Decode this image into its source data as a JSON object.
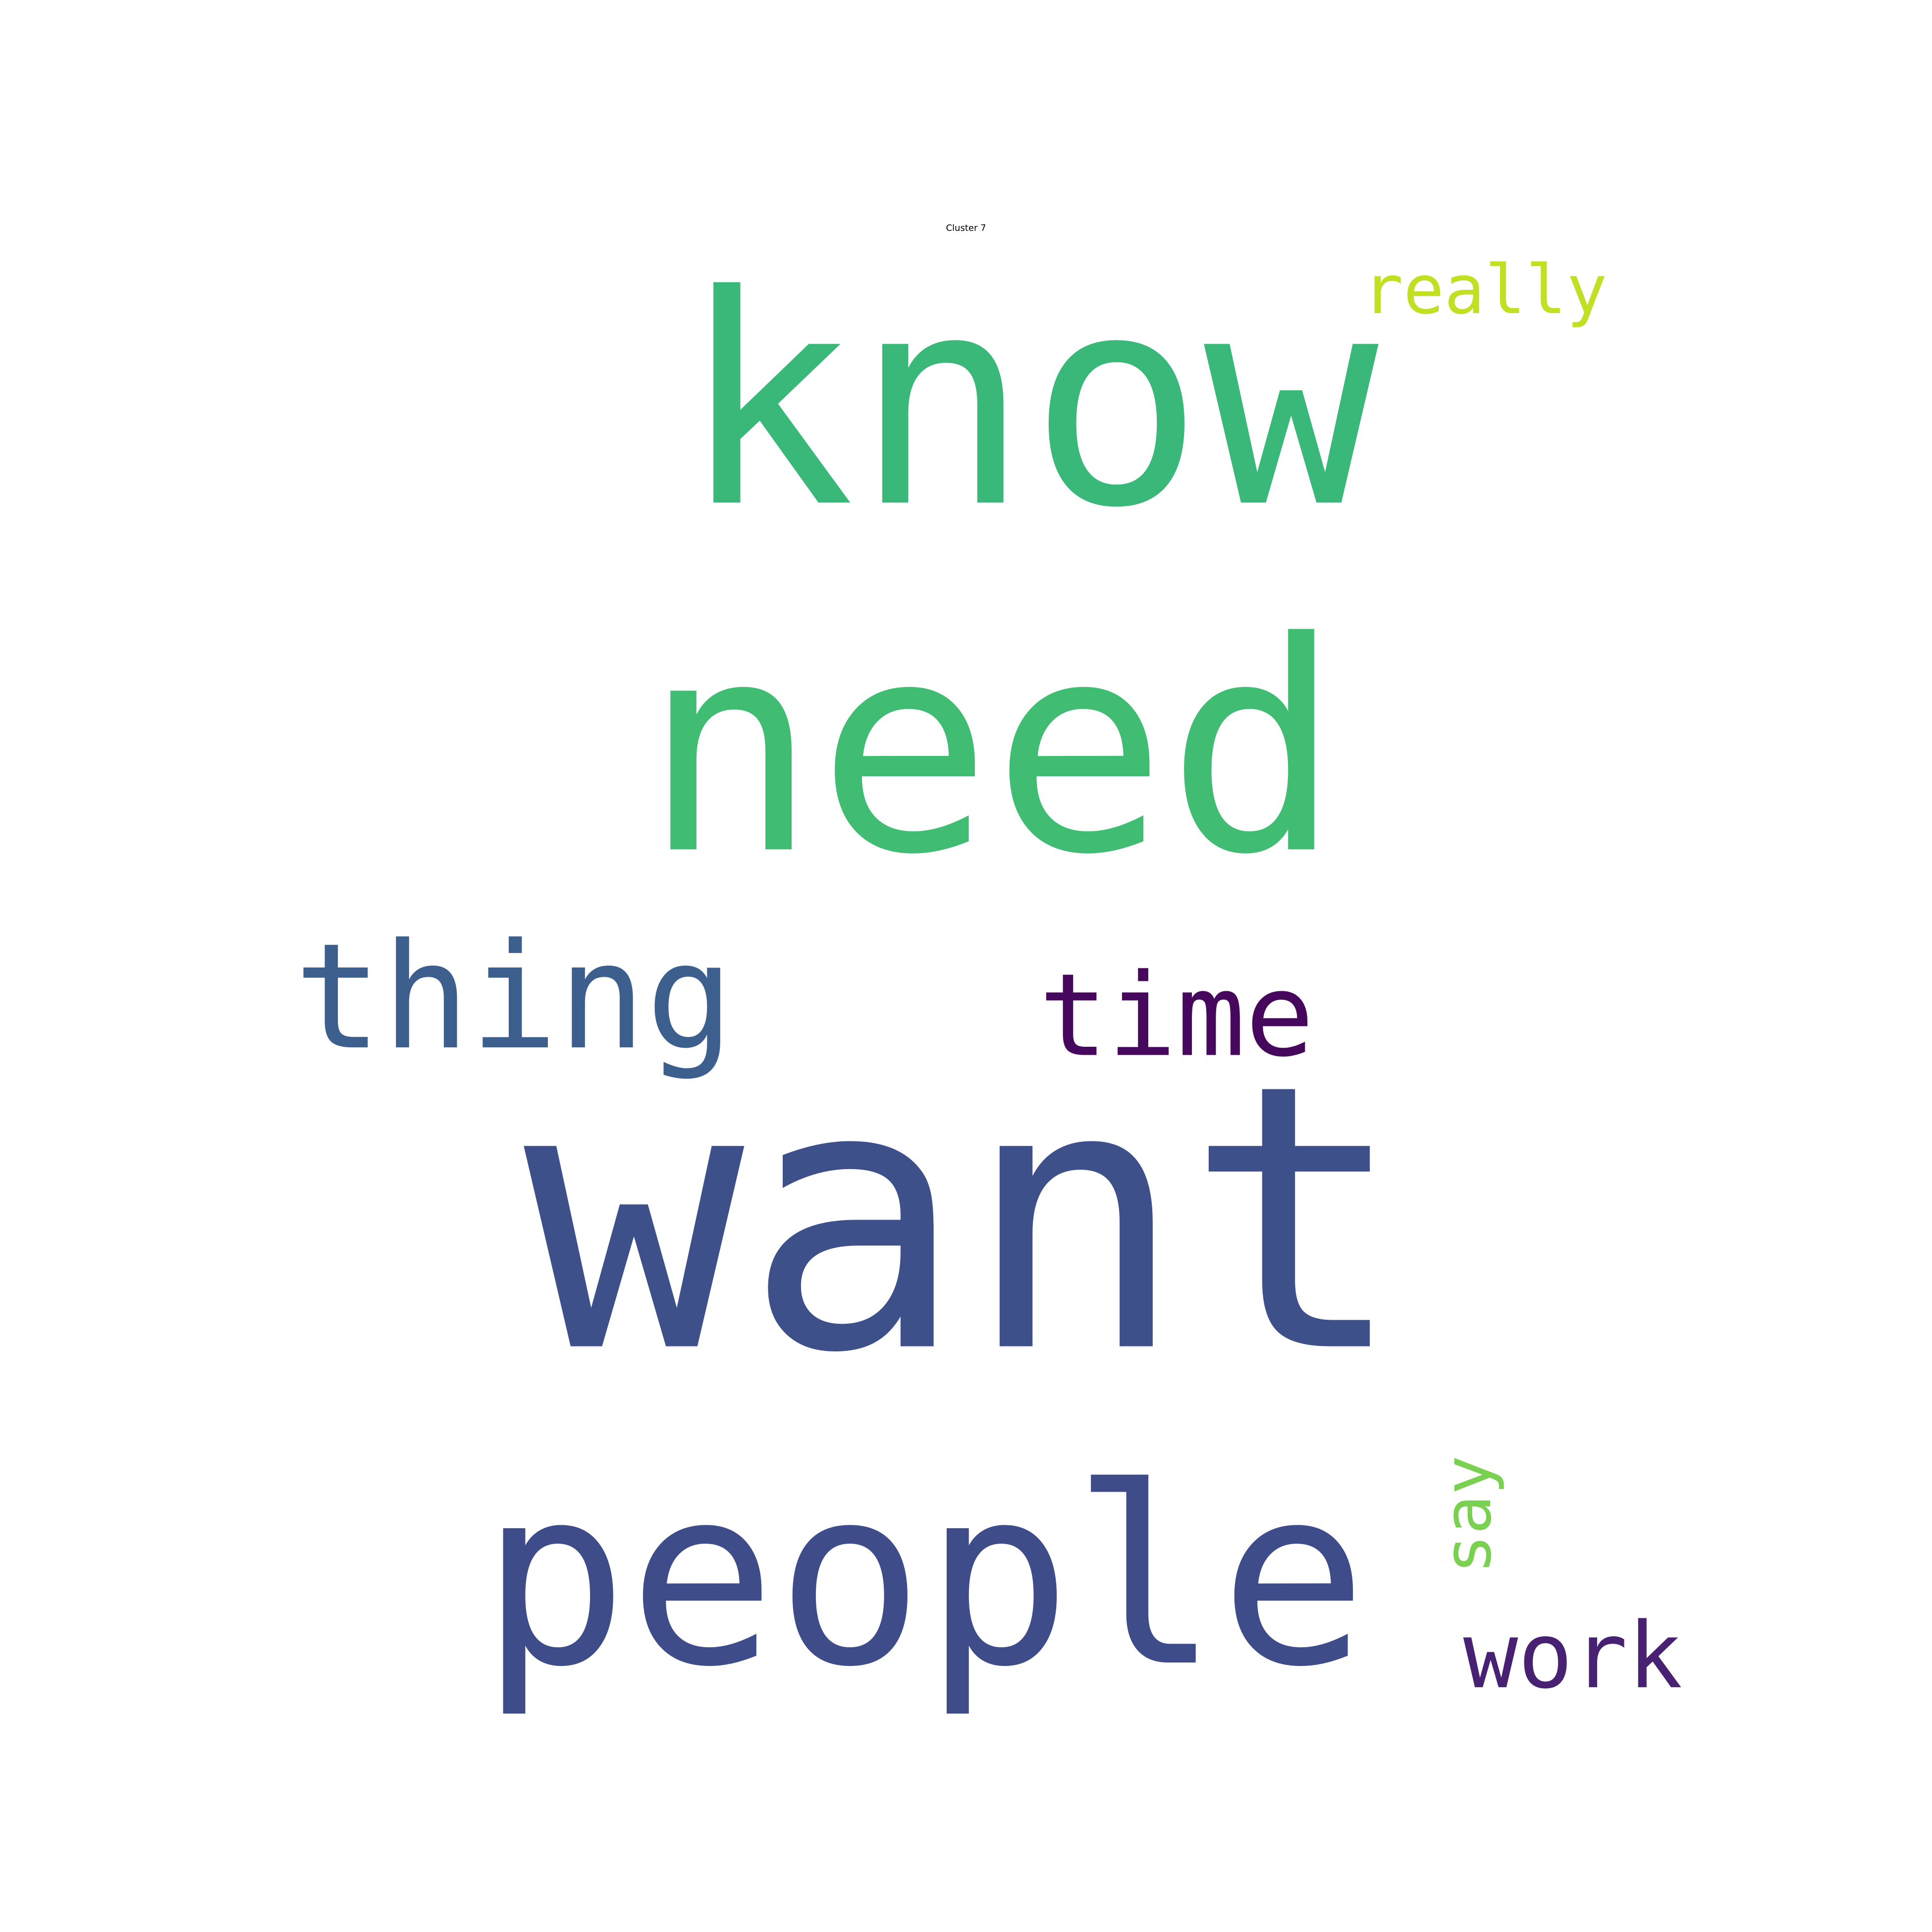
{
  "title": "Cluster 7",
  "words": [
    {
      "text": "need",
      "color": "#40bd72",
      "vertical": false
    },
    {
      "text": "want",
      "color": "#3e508a",
      "vertical": false
    },
    {
      "text": "know",
      "color": "#3ab879",
      "vertical": false
    },
    {
      "text": "people",
      "color": "#3e4d8a",
      "vertical": false
    },
    {
      "text": "thing",
      "color": "#3c5f8e",
      "vertical": false
    },
    {
      "text": "time",
      "color": "#46085c",
      "vertical": false
    },
    {
      "text": "work",
      "color": "#482173",
      "vertical": false
    },
    {
      "text": "really",
      "color": "#c2df23",
      "vertical": false
    },
    {
      "text": "say",
      "color": "#7ad151",
      "vertical": true
    }
  ]
}
